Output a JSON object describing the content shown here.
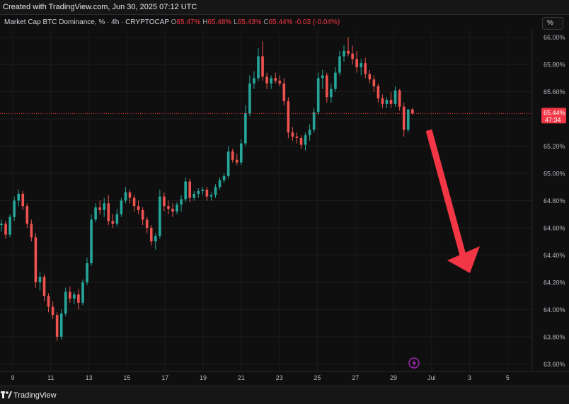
{
  "header": {
    "created_text": "Created with TradingView.com, Jun 30, 2025 07:12 UTC"
  },
  "legend": {
    "symbol": "Market Cap BTC Dominance, % · 4h · CRYPTOCAP",
    "o_label": "O",
    "o_value": "65.47%",
    "h_label": "H",
    "h_value": "65.48%",
    "l_label": "L",
    "l_value": "65.43%",
    "c_label": "C",
    "c_value": "65.44%",
    "change": "-0.03 (-0.04%)"
  },
  "scale_button": "%",
  "footer": {
    "brand": "TradingView"
  },
  "colors": {
    "up": "#26a69a",
    "down": "#ef5350",
    "arrow": "#f23645",
    "background": "#0f0f0f",
    "price_tag": "#f23645"
  },
  "chart_data": {
    "type": "candlestick",
    "ylim": [
      63.55,
      66.05
    ],
    "y_ticks": [
      "66.00%",
      "65.80%",
      "65.60%",
      "65.40%",
      "65.20%",
      "65.00%",
      "64.80%",
      "64.60%",
      "64.40%",
      "64.20%",
      "64.00%",
      "63.80%",
      "63.60%"
    ],
    "x_ticks": [
      "9",
      "11",
      "13",
      "15",
      "17",
      "19",
      "21",
      "23",
      "25",
      "27",
      "29",
      "Jul",
      "3",
      "5"
    ],
    "last_price_label": "65.44%",
    "countdown_label": "47:34",
    "candles": [
      [
        64.62,
        64.66,
        64.57,
        64.63
      ],
      [
        64.63,
        64.65,
        64.52,
        64.55
      ],
      [
        64.55,
        64.7,
        64.53,
        64.68
      ],
      [
        64.68,
        64.83,
        64.65,
        64.8
      ],
      [
        64.8,
        64.88,
        64.76,
        64.85
      ],
      [
        64.85,
        64.87,
        64.73,
        64.76
      ],
      [
        64.76,
        64.78,
        64.6,
        64.63
      ],
      [
        64.63,
        64.66,
        64.5,
        64.53
      ],
      [
        64.53,
        64.56,
        64.16,
        64.2
      ],
      [
        64.2,
        64.28,
        64.14,
        64.24
      ],
      [
        64.24,
        64.26,
        64.06,
        64.1
      ],
      [
        64.1,
        64.12,
        63.98,
        64.02
      ],
      [
        64.02,
        64.06,
        63.93,
        63.96
      ],
      [
        63.96,
        63.98,
        63.77,
        63.8
      ],
      [
        63.8,
        64.0,
        63.78,
        63.97
      ],
      [
        63.97,
        64.16,
        63.95,
        64.13
      ],
      [
        64.13,
        64.17,
        64.05,
        64.08
      ],
      [
        64.08,
        64.13,
        64.04,
        64.11
      ],
      [
        64.11,
        64.15,
        64.0,
        64.05
      ],
      [
        64.05,
        64.22,
        64.03,
        64.2
      ],
      [
        64.2,
        64.38,
        64.18,
        64.34
      ],
      [
        64.34,
        64.7,
        64.32,
        64.66
      ],
      [
        64.66,
        64.78,
        64.64,
        64.75
      ],
      [
        64.75,
        64.8,
        64.7,
        64.73
      ],
      [
        64.73,
        64.82,
        64.68,
        64.78
      ],
      [
        64.78,
        64.84,
        64.62,
        64.65
      ],
      [
        64.65,
        64.7,
        64.6,
        64.63
      ],
      [
        64.63,
        64.74,
        64.61,
        64.7
      ],
      [
        64.7,
        64.82,
        64.68,
        64.8
      ],
      [
        64.8,
        64.9,
        64.78,
        64.86
      ],
      [
        64.86,
        64.88,
        64.78,
        64.82
      ],
      [
        64.82,
        64.84,
        64.72,
        64.76
      ],
      [
        64.76,
        64.8,
        64.7,
        64.73
      ],
      [
        64.73,
        64.75,
        64.62,
        64.66
      ],
      [
        64.66,
        64.68,
        64.56,
        64.6
      ],
      [
        64.6,
        64.62,
        64.47,
        64.5
      ],
      [
        64.5,
        64.56,
        64.44,
        64.54
      ],
      [
        64.54,
        64.88,
        64.52,
        64.83
      ],
      [
        64.83,
        64.86,
        64.72,
        64.76
      ],
      [
        64.76,
        64.8,
        64.7,
        64.74
      ],
      [
        64.74,
        64.78,
        64.68,
        64.72
      ],
      [
        64.72,
        64.79,
        64.7,
        64.77
      ],
      [
        64.77,
        64.84,
        64.72,
        64.81
      ],
      [
        64.81,
        64.97,
        64.79,
        64.94
      ],
      [
        64.94,
        64.96,
        64.79,
        64.82
      ],
      [
        64.82,
        64.87,
        64.8,
        64.85
      ],
      [
        64.85,
        64.89,
        64.82,
        64.87
      ],
      [
        64.87,
        64.9,
        64.84,
        64.88
      ],
      [
        64.88,
        64.9,
        64.8,
        64.83
      ],
      [
        64.83,
        64.86,
        64.8,
        64.84
      ],
      [
        64.84,
        64.92,
        64.82,
        64.9
      ],
      [
        64.9,
        64.97,
        64.88,
        64.95
      ],
      [
        64.95,
        65.0,
        64.93,
        64.98
      ],
      [
        64.98,
        65.2,
        64.96,
        65.16
      ],
      [
        65.16,
        65.18,
        65.08,
        65.1
      ],
      [
        65.1,
        65.14,
        65.06,
        65.08
      ],
      [
        65.08,
        65.25,
        65.06,
        65.22
      ],
      [
        65.22,
        65.5,
        65.2,
        65.44
      ],
      [
        65.44,
        65.72,
        65.42,
        65.66
      ],
      [
        65.66,
        65.75,
        65.62,
        65.7
      ],
      [
        65.7,
        65.92,
        65.68,
        65.86
      ],
      [
        65.86,
        65.97,
        65.68,
        65.71
      ],
      [
        65.71,
        65.74,
        65.62,
        65.66
      ],
      [
        65.66,
        65.72,
        65.62,
        65.7
      ],
      [
        65.7,
        65.74,
        65.66,
        65.68
      ],
      [
        65.68,
        65.72,
        65.64,
        65.66
      ],
      [
        65.66,
        65.7,
        65.5,
        65.53
      ],
      [
        65.53,
        65.56,
        65.26,
        65.3
      ],
      [
        65.3,
        65.34,
        65.24,
        65.27
      ],
      [
        65.27,
        65.3,
        65.22,
        65.26
      ],
      [
        65.26,
        65.28,
        65.18,
        65.21
      ],
      [
        65.21,
        65.3,
        65.17,
        65.28
      ],
      [
        65.28,
        65.36,
        65.24,
        65.32
      ],
      [
        65.32,
        65.48,
        65.3,
        65.45
      ],
      [
        65.45,
        65.74,
        65.43,
        65.7
      ],
      [
        65.7,
        65.76,
        65.62,
        65.72
      ],
      [
        65.72,
        65.74,
        65.52,
        65.56
      ],
      [
        65.56,
        65.66,
        65.52,
        65.62
      ],
      [
        65.62,
        65.78,
        65.6,
        65.74
      ],
      [
        65.74,
        65.9,
        65.72,
        65.86
      ],
      [
        65.86,
        65.94,
        65.82,
        65.9
      ],
      [
        65.9,
        66.0,
        65.86,
        65.88
      ],
      [
        65.88,
        65.94,
        65.8,
        65.84
      ],
      [
        65.84,
        65.9,
        65.74,
        65.78
      ],
      [
        65.78,
        65.84,
        65.72,
        65.81
      ],
      [
        65.81,
        65.85,
        65.7,
        65.73
      ],
      [
        65.73,
        65.76,
        65.66,
        65.69
      ],
      [
        65.69,
        65.72,
        65.6,
        65.64
      ],
      [
        65.64,
        65.66,
        65.52,
        65.55
      ],
      [
        65.55,
        65.58,
        65.48,
        65.51
      ],
      [
        65.51,
        65.56,
        65.48,
        65.54
      ],
      [
        65.54,
        65.6,
        65.48,
        65.51
      ],
      [
        65.51,
        65.64,
        65.49,
        65.61
      ],
      [
        65.61,
        65.62,
        65.46,
        65.49
      ],
      [
        65.49,
        65.52,
        65.27,
        65.32
      ],
      [
        65.32,
        65.46,
        65.3,
        65.47
      ],
      [
        65.47,
        65.48,
        65.43,
        65.44
      ]
    ]
  }
}
